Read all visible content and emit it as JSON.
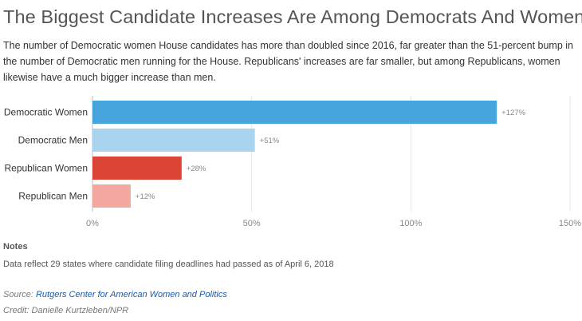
{
  "header": {
    "title": "The Biggest Candidate Increases Are Among Democrats And Women",
    "subtitle": "The number of Democratic women House candidates has more than doubled since 2016, far greater than the 51-percent bump in the number of Democratic men running for the House. Republicans' increases are far smaller, but among Republicans, women likewise have a much bigger increase than men."
  },
  "chart_data": {
    "type": "bar",
    "orientation": "horizontal",
    "categories": [
      "Democratic Women",
      "Democratic Men",
      "Republican Women",
      "Republican Men"
    ],
    "values": [
      127,
      51,
      28,
      12
    ],
    "data_labels": [
      "+127%",
      "+51%",
      "+28%",
      "+12%"
    ],
    "colors": [
      "#45a5dc",
      "#a8d4f0",
      "#dc4535",
      "#f2a89e"
    ],
    "xlim": [
      0,
      150
    ],
    "xticks": [
      0,
      50,
      100,
      150
    ],
    "xtick_labels": [
      "0%",
      "50%",
      "100%",
      "150%"
    ],
    "grid": true
  },
  "footer": {
    "notes_heading": "Notes",
    "notes_text": "Data reflect 29 states where candidate filing deadlines had passed as of April 6, 2018",
    "source_prefix": "Source: ",
    "source_link": "Rutgers Center for American Women and Politics",
    "credit": "Credit: Danielle Kurtzleben/NPR"
  }
}
